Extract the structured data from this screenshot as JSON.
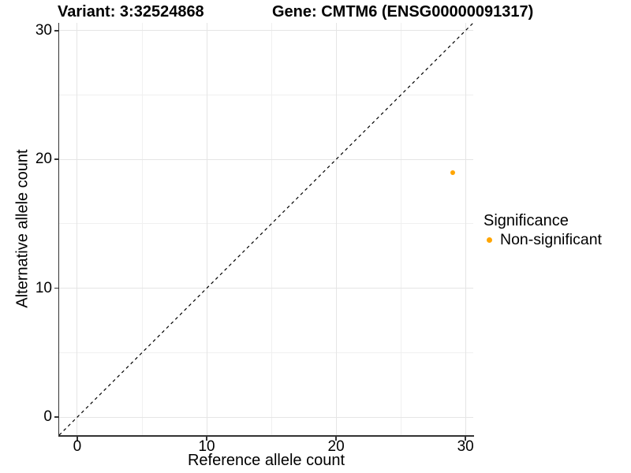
{
  "chart_data": {
    "type": "scatter",
    "titles": {
      "left": "Variant: 3:32524868",
      "right": "Gene: CMTM6 (ENSG00000091317)"
    },
    "xlabel": "Reference allele count",
    "ylabel": "Alternative allele count",
    "xlim": [
      -1.4,
      30.6
    ],
    "ylim": [
      -1.4,
      30.6
    ],
    "x_ticks": [
      0,
      10,
      20,
      30
    ],
    "y_ticks": [
      0,
      10,
      20,
      30
    ],
    "x_minor_ticks": [
      5,
      15,
      25
    ],
    "y_minor_ticks": [
      5,
      15,
      25
    ],
    "grid": "major+minor",
    "identity_line": {
      "equation": "y = x",
      "style": "dashed",
      "color": "#000000"
    },
    "series": [
      {
        "name": "Non-significant",
        "color": "#FFA500",
        "points": [
          {
            "x": 29,
            "y": 19
          }
        ]
      }
    ],
    "legend": {
      "title": "Significance",
      "position": "right",
      "items": [
        {
          "label": "Non-significant",
          "color": "#FFA500"
        }
      ]
    }
  }
}
